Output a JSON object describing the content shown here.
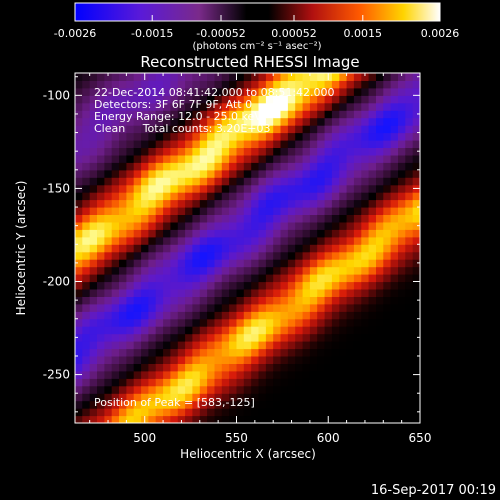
{
  "colorbar": {
    "ticks": [
      "-0.0026",
      "-0.0015",
      "-0.00052",
      "0.00052",
      "0.0015",
      "0.0026"
    ],
    "unit_label": "(photons cm⁻² s⁻¹ asec⁻²)",
    "range": [
      -0.0026,
      0.0026
    ]
  },
  "chart_data": {
    "type": "heatmap",
    "title": "Reconstructed RHESSI Image",
    "xlabel": "Heliocentric X (arcsec)",
    "ylabel": "Heliocentric Y (arcsec)",
    "xlim": [
      462,
      650
    ],
    "ylim": [
      -276,
      -88
    ],
    "x_ticks": [
      500,
      550,
      600,
      650
    ],
    "y_ticks": [
      -100,
      -150,
      -200,
      -250
    ],
    "x_tick_labels": [
      "500",
      "550",
      "600",
      "650"
    ],
    "y_tick_labels": [
      "-100",
      "-150",
      "-200",
      "-250"
    ],
    "peak": [
      583,
      -125
    ],
    "info": {
      "time": "22-Dec-2014 08:41:42.000 to 08:51:42.000",
      "detectors": "Detectors: 3F 6F 7F 9F, Att 0",
      "energy": "Energy Range: 12.0 - 25.0 keV",
      "clean": "Clean     Total counts: 3.20E+03",
      "peak_text": "Position of Peak = [583,-125]"
    },
    "colormap": "black-purple-blue / red-yellow-white"
  },
  "footer": {
    "timestamp": "16-Sep-2017 00:19"
  }
}
